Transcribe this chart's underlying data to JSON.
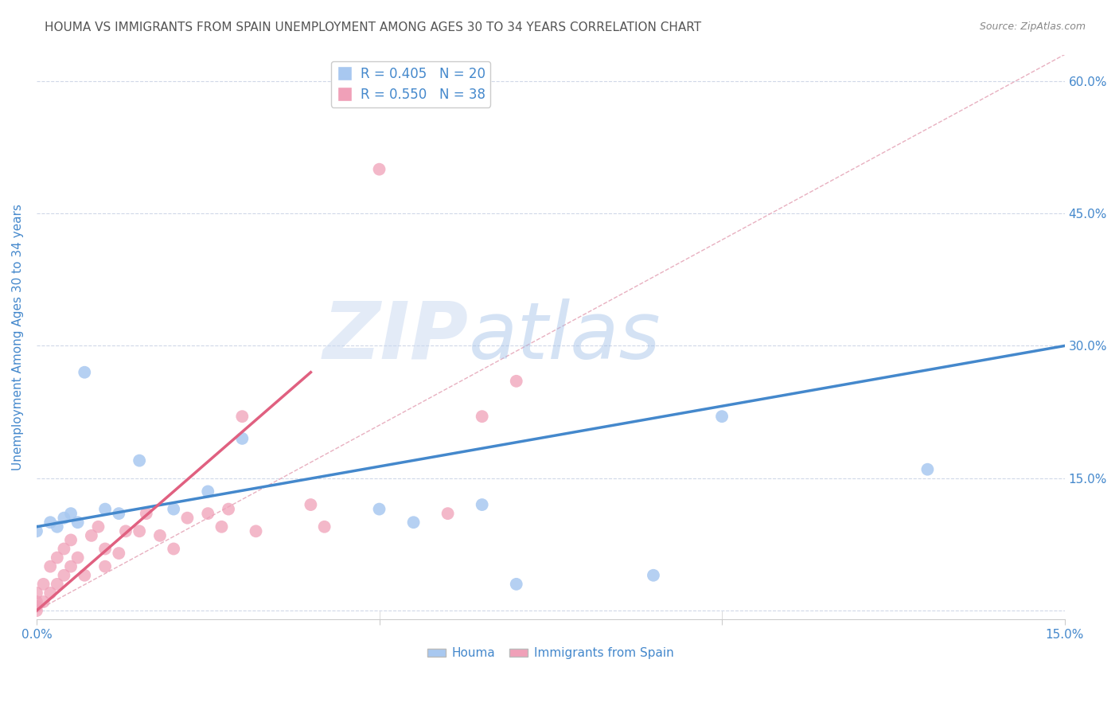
{
  "title": "HOUMA VS IMMIGRANTS FROM SPAIN UNEMPLOYMENT AMONG AGES 30 TO 34 YEARS CORRELATION CHART",
  "source": "Source: ZipAtlas.com",
  "ylabel": "Unemployment Among Ages 30 to 34 years",
  "x_ticks": [
    0.0,
    0.05,
    0.1,
    0.15
  ],
  "x_tick_labels": [
    "0.0%",
    "",
    "",
    "15.0%"
  ],
  "y_ticks_right": [
    0.0,
    0.15,
    0.3,
    0.45,
    0.6
  ],
  "y_tick_labels_right": [
    "",
    "15.0%",
    "30.0%",
    "45.0%",
    "60.0%"
  ],
  "xmin": 0.0,
  "xmax": 0.15,
  "ymin": -0.01,
  "ymax": 0.63,
  "houma_x": [
    0.0,
    0.002,
    0.003,
    0.004,
    0.005,
    0.006,
    0.007,
    0.01,
    0.012,
    0.015,
    0.02,
    0.025,
    0.03,
    0.05,
    0.055,
    0.065,
    0.07,
    0.09,
    0.1,
    0.13
  ],
  "houma_y": [
    0.09,
    0.1,
    0.095,
    0.105,
    0.11,
    0.1,
    0.27,
    0.115,
    0.11,
    0.17,
    0.115,
    0.135,
    0.195,
    0.115,
    0.1,
    0.12,
    0.03,
    0.04,
    0.22,
    0.16
  ],
  "spain_x": [
    0.0,
    0.0,
    0.0,
    0.0,
    0.001,
    0.001,
    0.002,
    0.002,
    0.003,
    0.003,
    0.004,
    0.004,
    0.005,
    0.005,
    0.006,
    0.007,
    0.008,
    0.009,
    0.01,
    0.01,
    0.012,
    0.013,
    0.015,
    0.016,
    0.018,
    0.02,
    0.022,
    0.025,
    0.027,
    0.028,
    0.03,
    0.032,
    0.04,
    0.042,
    0.05,
    0.06,
    0.065,
    0.07
  ],
  "spain_y": [
    0.0,
    0.005,
    0.01,
    0.02,
    0.01,
    0.03,
    0.02,
    0.05,
    0.03,
    0.06,
    0.04,
    0.07,
    0.05,
    0.08,
    0.06,
    0.04,
    0.085,
    0.095,
    0.05,
    0.07,
    0.065,
    0.09,
    0.09,
    0.11,
    0.085,
    0.07,
    0.105,
    0.11,
    0.095,
    0.115,
    0.22,
    0.09,
    0.12,
    0.095,
    0.5,
    0.11,
    0.22,
    0.26
  ],
  "houma_color": "#a8c8f0",
  "spain_color": "#f0a0b8",
  "houma_line_color": "#4488cc",
  "spain_line_color": "#e06080",
  "diagonal_color": "#e8b0c0",
  "background_color": "#ffffff",
  "watermark_zip": "ZIP",
  "watermark_atlas": "atlas",
  "watermark_color_zip": "#c8d8f0",
  "watermark_color_atlas": "#a0c0e8",
  "title_color": "#555555",
  "axis_label_color": "#4488cc",
  "tick_label_color": "#4488cc",
  "grid_color": "#d0d8e8",
  "legend_label_houma": "Houma",
  "legend_label_spain": "Immigrants from Spain",
  "houma_line_x0": 0.0,
  "houma_line_y0": 0.095,
  "houma_line_x1": 0.15,
  "houma_line_y1": 0.3,
  "spain_line_x0": 0.0,
  "spain_line_y0": 0.0,
  "spain_line_x1": 0.04,
  "spain_line_y1": 0.27
}
